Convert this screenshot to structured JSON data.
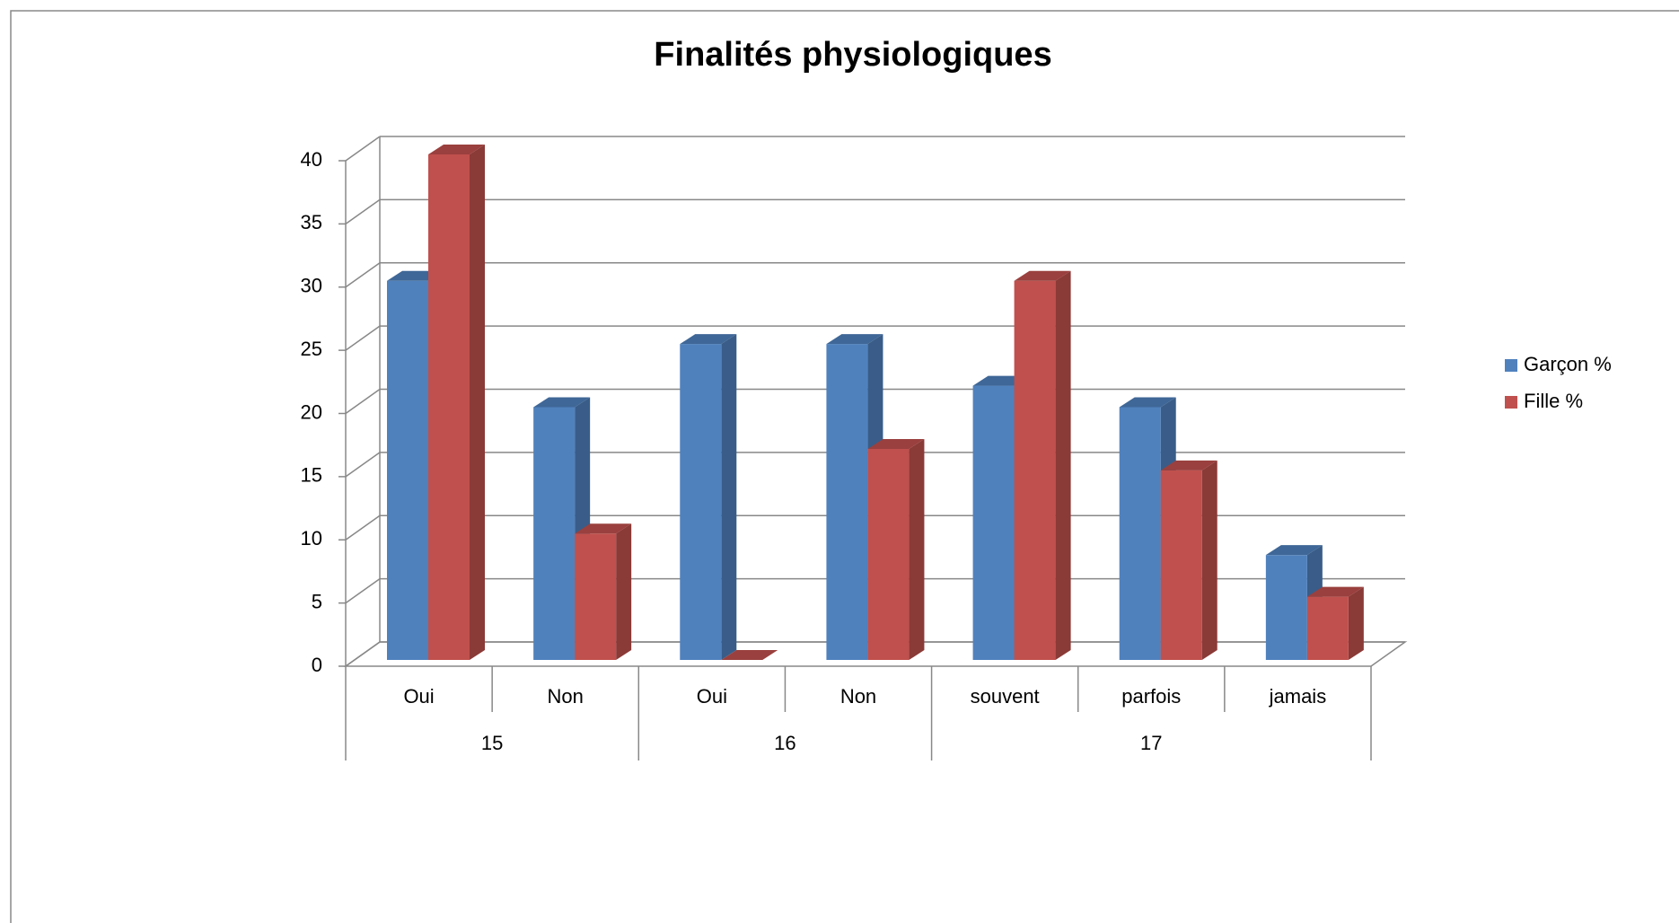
{
  "chart_data": {
    "type": "bar3d",
    "title": "Finalités physiologiques",
    "groups": [
      {
        "name": "15",
        "categories": [
          "Oui",
          "Non"
        ]
      },
      {
        "name": "16",
        "categories": [
          "Oui",
          "Non"
        ]
      },
      {
        "name": "17",
        "categories": [
          "souvent",
          "parfois",
          "jamais"
        ]
      }
    ],
    "series": [
      {
        "name": "Garçon %",
        "color": "#4f81bd",
        "values": [
          30,
          20,
          25,
          25,
          21.7,
          20,
          8.3
        ]
      },
      {
        "name": "Fille %",
        "color": "#c0504d",
        "values": [
          40,
          10,
          0,
          16.7,
          30,
          15,
          5
        ]
      }
    ],
    "ylim": [
      0,
      40
    ],
    "yticks": [
      0,
      5,
      10,
      15,
      20,
      25,
      30,
      35,
      40
    ],
    "grid": true,
    "legend": "right"
  }
}
